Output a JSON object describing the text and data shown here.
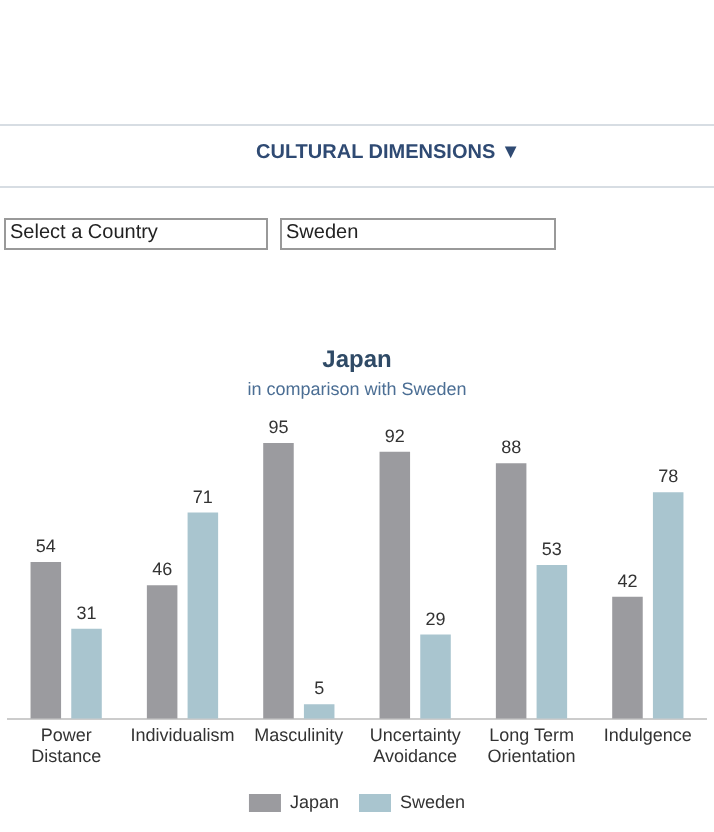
{
  "chart_data": {
    "type": "bar",
    "title": "Japan",
    "subtitle": "in comparison with Sweden",
    "categories": [
      "Power Distance",
      "Individualism",
      "Masculinity",
      "Uncertainty Avoidance",
      "Long Term Orientation",
      "Indulgence"
    ],
    "series": [
      {
        "name": "Japan",
        "color": "#9b9b9f",
        "values": [
          54,
          46,
          95,
          92,
          88,
          42
        ]
      },
      {
        "name": "Sweden",
        "color": "#a9c5cf",
        "values": [
          31,
          71,
          5,
          29,
          53,
          78
        ]
      }
    ],
    "tick_labels": "x",
    "data_labels": true,
    "grid": false,
    "legend": "bottom",
    "annotations": [
      "CULTURAL DIMENSIONS ▼",
      "Select a Country",
      "Sweden"
    ]
  }
}
